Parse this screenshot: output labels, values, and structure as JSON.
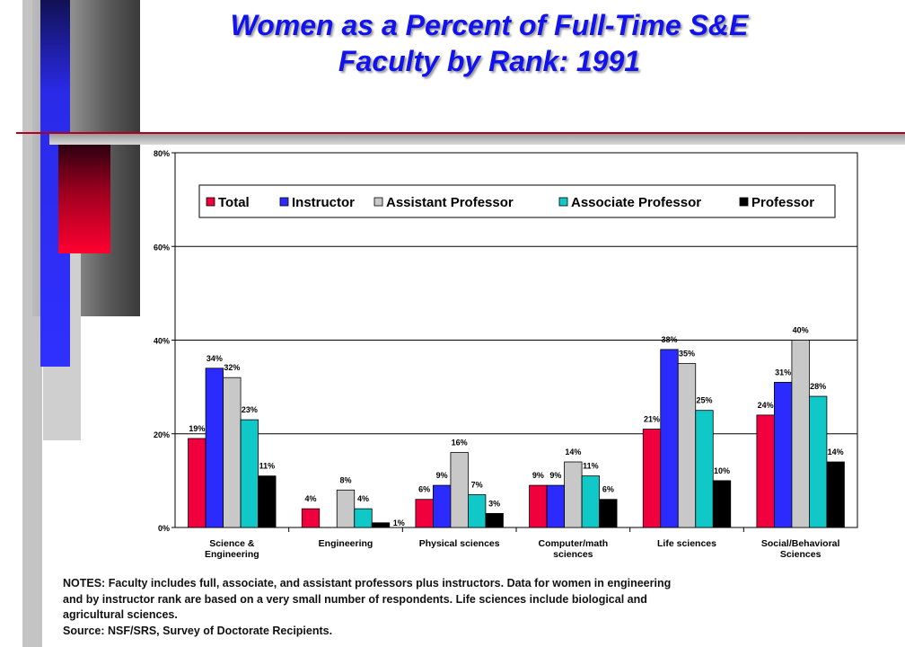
{
  "slide": {
    "title_line1": "Women as a Percent of Full-Time S&E",
    "title_line2": "Faculty by Rank: 1991",
    "notes_lines": [
      "NOTES: Faculty includes full, associate, and assistant professors plus instructors.  Data for women in engineering",
      "and by instructor rank are based on a very small number of respondents. Life sciences include biological and",
      "agricultural sciences."
    ],
    "source": "Source:  NSF/SRS, Survey of Doctorate Recipients."
  },
  "chart_data": {
    "type": "bar",
    "categories": [
      [
        "Science &",
        "Engineering"
      ],
      [
        "Engineering"
      ],
      [
        "Physical sciences"
      ],
      [
        "Computer/math",
        "sciences"
      ],
      [
        "Life sciences"
      ],
      [
        "Social/Behavioral",
        "Sciences"
      ]
    ],
    "series": [
      {
        "name": "Total",
        "color": "#f0003c",
        "values": [
          19,
          4,
          6,
          9,
          21,
          24
        ],
        "labels": [
          "19%",
          "4%",
          "6%",
          "9%",
          "21%",
          "24%"
        ]
      },
      {
        "name": "Instructor",
        "color": "#2b2bff",
        "values": [
          34,
          0,
          9,
          9,
          38,
          31
        ],
        "labels": [
          "34%",
          "",
          "9%",
          "9%",
          "38%",
          "31%"
        ]
      },
      {
        "name": "Assistant Professor",
        "color": "#c8c8c8",
        "values": [
          32,
          8,
          16,
          14,
          35,
          40
        ],
        "labels": [
          "32%",
          "8%",
          "16%",
          "14%",
          "35%",
          "40%"
        ]
      },
      {
        "name": "Associate Professor",
        "color": "#10c8c8",
        "values": [
          23,
          4,
          7,
          11,
          25,
          28
        ],
        "labels": [
          "23%",
          "4%",
          "7%",
          "11%",
          "25%",
          "28%"
        ]
      },
      {
        "name": "Professor",
        "color": "#000000",
        "values": [
          11,
          1,
          3,
          6,
          10,
          14
        ],
        "labels": [
          "11%",
          "1%",
          "3%",
          "6%",
          "10%",
          "14%"
        ]
      }
    ],
    "yticks": [
      "0%",
      "20%",
      "40%",
      "60%",
      "80%"
    ],
    "ylim": [
      0,
      80
    ],
    "grid": true,
    "legend_position": "top"
  }
}
